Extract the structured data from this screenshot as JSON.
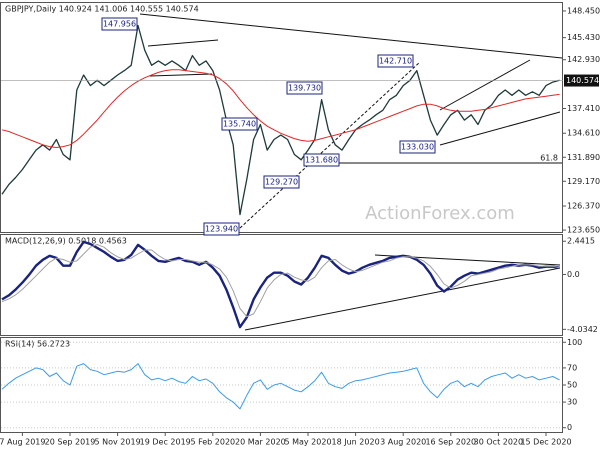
{
  "chart_data": [
    {
      "type": "line",
      "title": "GBPJPY,Daily  140.924 141.006 140.555 140.574",
      "watermark": "ActionForex.com",
      "ylim": [
        123.43,
        149.35
      ],
      "yticks": [
        {
          "value": 148.45,
          "label": "148.450"
        },
        {
          "value": 145.43,
          "label": "145.430"
        },
        {
          "value": 142.93,
          "label": "142.930"
        },
        {
          "value": 137.41,
          "label": "137.410"
        },
        {
          "value": 134.61,
          "label": "134.610"
        },
        {
          "value": 131.89,
          "label": "131.890"
        },
        {
          "value": 129.17,
          "label": "129.170"
        },
        {
          "value": 126.37,
          "label": "126.370"
        },
        {
          "value": 123.65,
          "label": "123.650"
        }
      ],
      "last_price": {
        "value": 140.574,
        "label": "140.574"
      },
      "annotations": [
        "147.956",
        "142.710",
        "139.730",
        "135.740",
        "131.680",
        "129.270",
        "123.940",
        "133.030",
        "61.8"
      ],
      "series": [
        {
          "name": "GBPJPY",
          "color": "#1f3a3a",
          "values": [
            127.7,
            128.8,
            129.6,
            130.5,
            131.6,
            132.7,
            133.3,
            132.7,
            133.9,
            132.2,
            131.6,
            139.5,
            141.2,
            140.0,
            140.6,
            140.0,
            140.6,
            141.2,
            141.7,
            142.3,
            146.8,
            144.0,
            142.3,
            142.8,
            142.3,
            142.8,
            142.3,
            141.7,
            143.4,
            142.3,
            142.8,
            141.7,
            139.5,
            136.1,
            133.3,
            125.4,
            129.4,
            133.9,
            135.6,
            132.7,
            133.9,
            134.4,
            133.9,
            132.2,
            131.6,
            132.7,
            133.9,
            138.4,
            135.0,
            133.3,
            132.7,
            133.9,
            135.0,
            135.6,
            136.1,
            136.7,
            137.2,
            138.4,
            138.9,
            140.0,
            140.6,
            141.7,
            138.9,
            136.1,
            134.4,
            135.6,
            136.7,
            137.2,
            136.1,
            136.7,
            135.6,
            137.2,
            137.8,
            138.9,
            139.5,
            138.9,
            139.5,
            138.9,
            139.3,
            138.9,
            140.0,
            140.4,
            140.6
          ]
        },
        {
          "name": "MA",
          "color": "#e02828",
          "values": [
            135.0,
            134.8,
            134.5,
            134.2,
            133.9,
            133.6,
            133.3,
            133.1,
            133.0,
            133.1,
            133.3,
            133.8,
            134.5,
            135.3,
            136.1,
            137.0,
            137.9,
            138.7,
            139.4,
            140.0,
            140.5,
            140.9,
            141.2,
            141.5,
            141.7,
            141.8,
            141.8,
            141.7,
            141.6,
            141.5,
            141.4,
            141.2,
            140.8,
            140.2,
            139.4,
            138.4,
            137.5,
            136.7,
            136.0,
            135.4,
            135.0,
            134.6,
            134.3,
            134.0,
            133.8,
            133.7,
            133.8,
            134.0,
            134.2,
            134.4,
            134.6,
            134.8,
            135.0,
            135.3,
            135.6,
            135.9,
            136.2,
            136.5,
            136.8,
            137.1,
            137.4,
            137.7,
            137.9,
            137.9,
            137.7,
            137.4,
            137.2,
            137.1,
            137.1,
            137.1,
            137.2,
            137.3,
            137.5,
            137.7,
            137.9,
            138.1,
            138.3,
            138.5,
            138.6,
            138.7,
            138.8,
            138.9,
            139.0
          ]
        }
      ]
    },
    {
      "type": "line",
      "title": "MACD(12,26,9) 0.5018 0.4563",
      "ylim": [
        -4.45,
        2.9
      ],
      "yticks": [
        2.4415,
        {
          "value": 0,
          "label": "0.0"
        },
        -4.0342
      ],
      "series": [
        {
          "name": "MACD",
          "color": "#1a237e",
          "values": [
            -1.83,
            -1.54,
            -1.11,
            -0.6,
            -0.02,
            0.64,
            1.08,
            1.37,
            1.22,
            0.64,
            0.64,
            1.66,
            2.39,
            2.24,
            1.95,
            1.66,
            1.3,
            1.0,
            1.08,
            1.44,
            2.17,
            1.81,
            1.37,
            1.0,
            0.93,
            1.08,
            1.22,
            1.0,
            0.93,
            0.71,
            0.93,
            0.5,
            -0.09,
            -1.11,
            -2.42,
            -3.87,
            -3.15,
            -1.83,
            -0.96,
            -0.23,
            0.13,
            0.13,
            -0.09,
            -0.52,
            -0.74,
            -0.23,
            0.5,
            1.37,
            1.22,
            0.71,
            0.28,
            0.06,
            0.2,
            0.5,
            0.71,
            0.86,
            1.0,
            1.22,
            1.3,
            1.37,
            1.3,
            1.08,
            0.71,
            0.06,
            -0.82,
            -1.25,
            -0.89,
            -0.38,
            -0.09,
            0.13,
            0.06,
            0.2,
            0.35,
            0.5,
            0.64,
            0.71,
            0.64,
            0.71,
            0.64,
            0.5,
            0.57,
            0.57,
            0.5
          ]
        },
        {
          "name": "Signal",
          "color": "#a0a0a0",
          "values": [
            -2.0,
            -1.8,
            -1.5,
            -1.1,
            -0.6,
            -0.1,
            0.4,
            0.9,
            1.2,
            1.1,
            0.9,
            1.0,
            1.5,
            2.0,
            2.2,
            2.0,
            1.6,
            1.3,
            1.1,
            1.2,
            1.5,
            1.8,
            1.8,
            1.4,
            1.1,
            1.0,
            1.1,
            1.1,
            1.0,
            0.9,
            0.9,
            0.7,
            0.4,
            -0.2,
            -1.2,
            -2.5,
            -3.1,
            -2.9,
            -2.0,
            -1.0,
            -0.4,
            0.0,
            0.1,
            -0.2,
            -0.4,
            -0.5,
            -0.2,
            0.5,
            1.0,
            1.1,
            0.7,
            0.4,
            0.2,
            0.3,
            0.5,
            0.7,
            0.9,
            1.0,
            1.2,
            1.3,
            1.3,
            1.2,
            1.0,
            0.6,
            0.0,
            -0.7,
            -1.0,
            -0.8,
            -0.5,
            -0.1,
            0.0,
            0.1,
            0.2,
            0.4,
            0.5,
            0.6,
            0.7,
            0.7,
            0.7,
            0.6,
            0.6,
            0.6,
            0.5
          ]
        }
      ]
    },
    {
      "type": "line",
      "title": "RSI(14) 56.2723",
      "grid": true,
      "ylim": [
        -5,
        105
      ],
      "yticks": [
        100,
        70,
        50,
        30,
        0
      ],
      "categories": [
        null,
        null,
        null,
        "7 Aug 2019",
        null,
        null,
        null,
        null,
        null,
        null,
        "20 Sep 2019",
        null,
        null,
        null,
        null,
        null,
        null,
        "5 Nov 2019",
        null,
        null,
        null,
        null,
        null,
        null,
        "19 Dec 2019",
        null,
        null,
        null,
        null,
        null,
        null,
        "5 Feb 2020",
        null,
        null,
        null,
        null,
        null,
        null,
        "20 Mar 2020",
        null,
        null,
        null,
        null,
        null,
        null,
        "5 May 2020",
        null,
        null,
        null,
        null,
        null,
        null,
        "18 Jun 2020",
        null,
        null,
        null,
        null,
        null,
        null,
        "3 Aug 2020",
        null,
        null,
        null,
        null,
        null,
        null,
        "16 Sep 2020",
        null,
        null,
        null,
        null,
        null,
        null,
        "30 Oct 2020",
        null,
        null,
        null,
        null,
        null,
        null,
        "15 Dec 2020",
        null,
        null
      ],
      "series": [
        {
          "name": "RSI",
          "color": "#3d9be9",
          "values": [
            45,
            52,
            58,
            62,
            66,
            70,
            68,
            60,
            64,
            55,
            50,
            72,
            75,
            68,
            66,
            62,
            64,
            66,
            65,
            68,
            75,
            62,
            56,
            58,
            55,
            58,
            54,
            52,
            60,
            55,
            57,
            52,
            42,
            35,
            30,
            22,
            38,
            52,
            56,
            45,
            50,
            52,
            48,
            44,
            42,
            48,
            55,
            65,
            52,
            48,
            46,
            52,
            55,
            56,
            58,
            60,
            62,
            64,
            65,
            66,
            68,
            70,
            52,
            42,
            35,
            45,
            52,
            55,
            48,
            52,
            48,
            56,
            60,
            62,
            64,
            58,
            62,
            58,
            60,
            56,
            58,
            60,
            56
          ]
        }
      ]
    }
  ]
}
